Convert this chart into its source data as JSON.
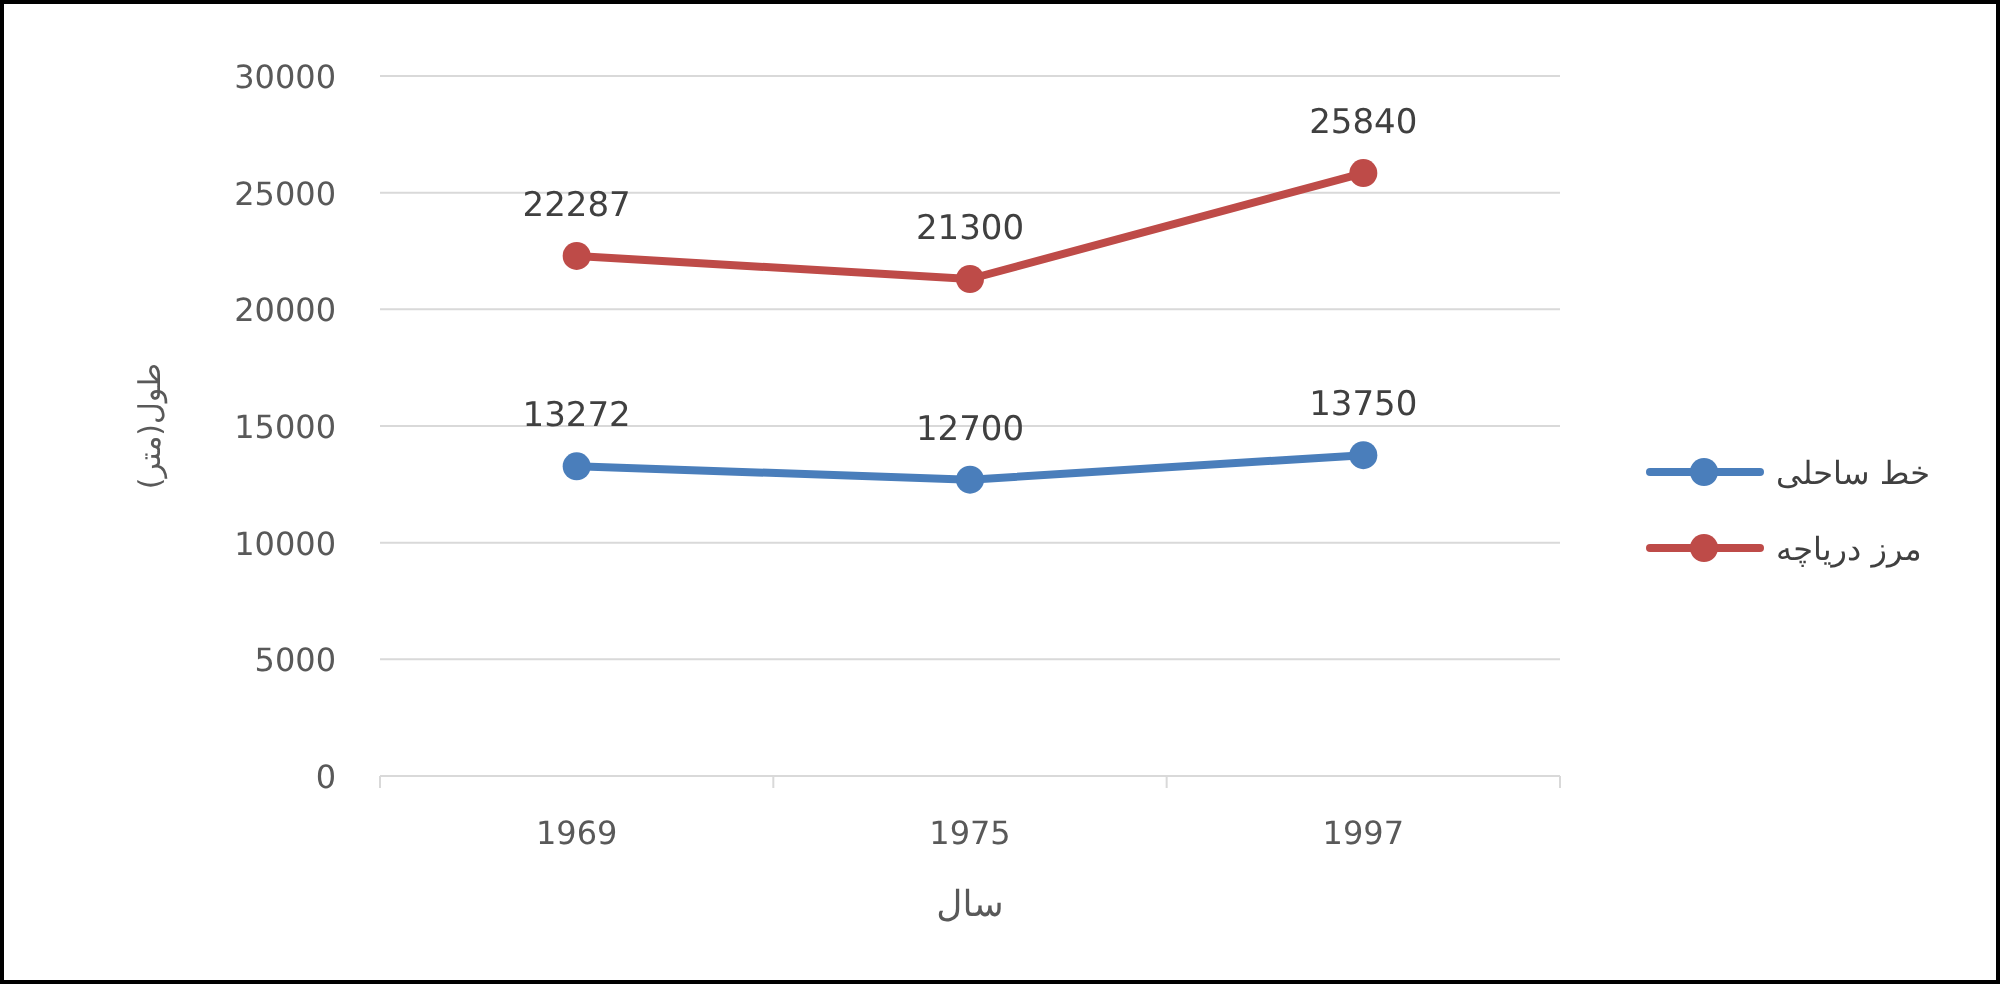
{
  "chart_data": {
    "type": "line",
    "xlabel": "سال",
    "ylabel": "طول(متر)",
    "categories": [
      "1969",
      "1975",
      "1997"
    ],
    "series": [
      {
        "name": "خط ساحلی",
        "color": "#4a7ebb",
        "values": [
          13272,
          12700,
          13750
        ]
      },
      {
        "name": "مرز دریاچه",
        "color": "#be4b48",
        "values": [
          22287,
          21300,
          25840
        ]
      }
    ],
    "ylim": [
      0,
      30000
    ],
    "yticks": [
      0,
      5000,
      10000,
      15000,
      20000,
      25000,
      30000
    ],
    "grid": "y",
    "legend": "right",
    "marker": "circle",
    "line_style": "solid",
    "data_labels": true
  }
}
